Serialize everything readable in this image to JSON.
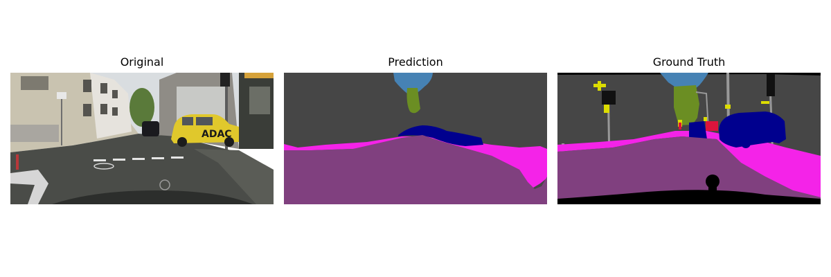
{
  "figure": {
    "panels": [
      {
        "title": "Original"
      },
      {
        "title": "Prediction"
      },
      {
        "title": "Ground Truth"
      }
    ],
    "scene_text": {
      "taxi_door_lettering": "ADAC"
    },
    "colors": {
      "road": "#80407f",
      "sidewalk": "#f423e8",
      "building": "#464646",
      "vegetation": "#6b8e23",
      "sky": "#4682b4",
      "car": "#00008e",
      "pole": "#999999",
      "traffic_sign": "#dcdc00",
      "traffic_light": "#111111",
      "person": "#dc143c",
      "unlabeled": "#000000"
    }
  }
}
